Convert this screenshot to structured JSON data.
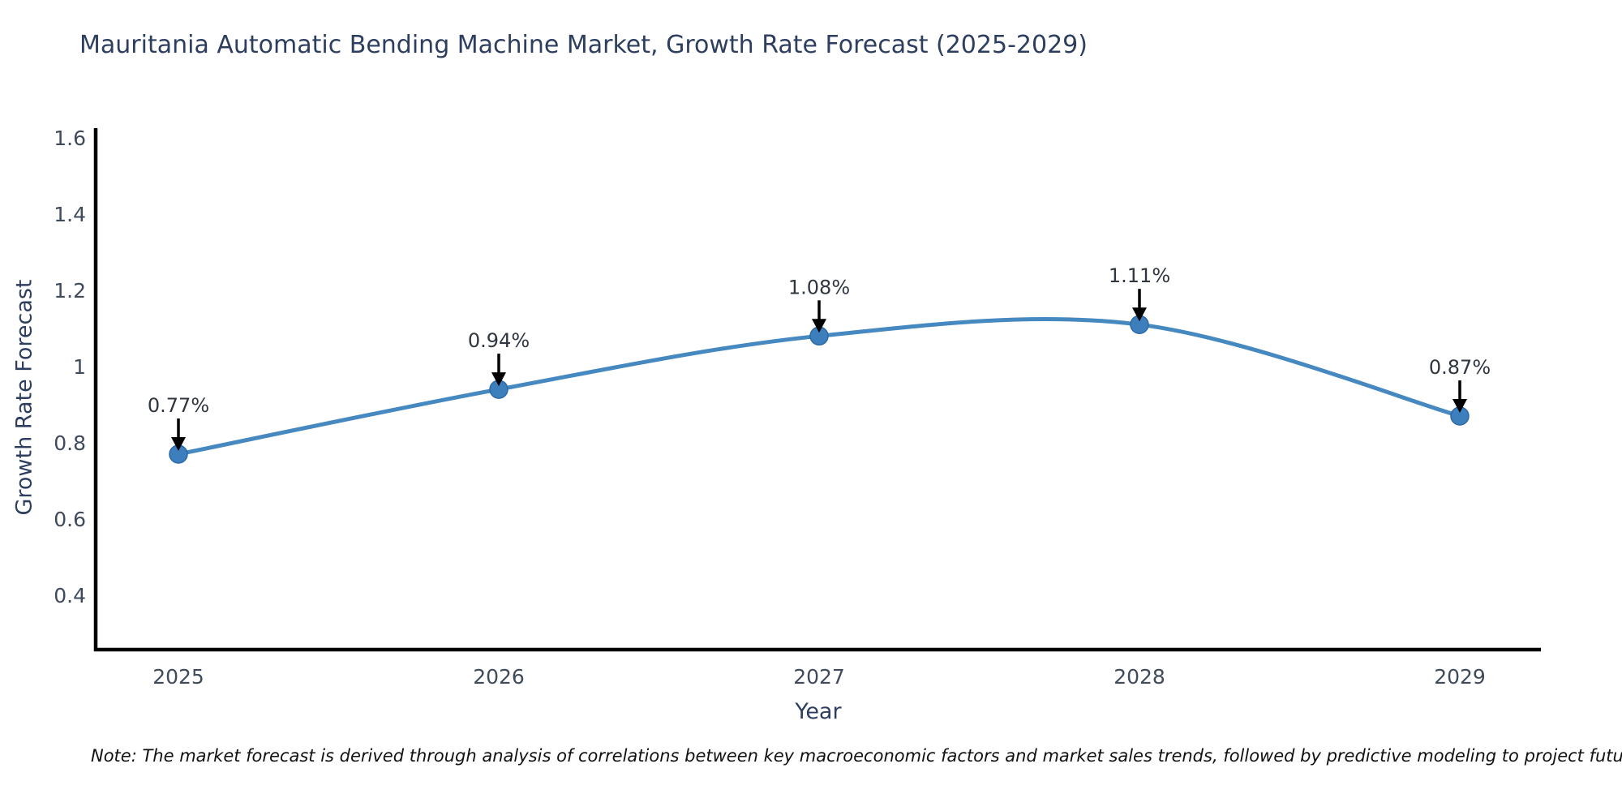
{
  "note": {
    "text": "Note: The market forecast is derived through analysis of correlations between key macroeconomic factors and market sales trends, followed by predictive modeling to project future sales"
  },
  "colors": {
    "line": "#4688c0",
    "marker_fill": "#3d7ebd",
    "marker_edge": "#2c6aa5",
    "axis": "#000000",
    "arrow": "#000000",
    "title_text": "#2d3e5f",
    "tick_text": "#3f4a5a",
    "annotation_text": "#30363f"
  },
  "chart_data": {
    "type": "line",
    "title": "Mauritania Automatic Bending Machine Market, Growth Rate Forecast (2025-2029)",
    "xlabel": "Year",
    "ylabel": "Growth Rate Forecast",
    "x": [
      2025,
      2026,
      2027,
      2028,
      2029
    ],
    "values": [
      0.77,
      0.94,
      1.08,
      1.11,
      0.87
    ],
    "point_labels": [
      "0.77%",
      "0.94%",
      "1.08%",
      "1.11%",
      "0.87%"
    ],
    "xtick_labels": [
      "2025",
      "2026",
      "2027",
      "2028",
      "2029"
    ],
    "ytick_values": [
      0.4,
      0.6,
      0.8,
      1.0,
      1.2,
      1.4,
      1.6
    ],
    "ytick_labels": [
      "0.4",
      "0.6",
      "0.8",
      "1",
      "1.2",
      "1.4",
      "1.6"
    ],
    "ylim": [
      0.26,
      1.62
    ],
    "grid": false,
    "legend": "none",
    "line_shape": "spline",
    "annotations": "black arrows pointing down at each data point"
  }
}
